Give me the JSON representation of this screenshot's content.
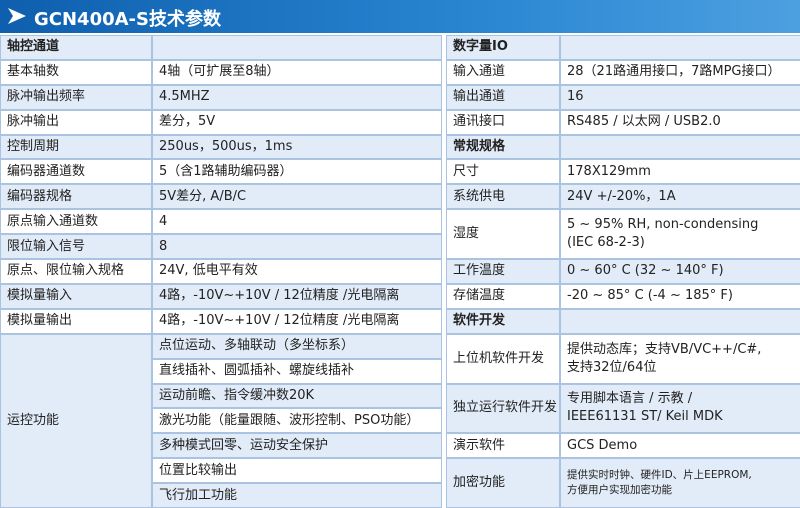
{
  "header": {
    "title": "GCN400A-S技术参数"
  },
  "left": {
    "rows": [
      {
        "heading": "轴控通道"
      },
      {
        "label": "基本轴数",
        "value": [
          "4轴（可扩展至8轴）"
        ]
      },
      {
        "label": "脉冲输出频率",
        "value": [
          "4.5MHZ"
        ]
      },
      {
        "label": "脉冲输出",
        "value": [
          "差分，5V"
        ]
      },
      {
        "label": "控制周期",
        "value": [
          "250us，500us，1ms"
        ]
      },
      {
        "label": "编码器通道数",
        "value": [
          "5（含1路辅助编码器）"
        ]
      },
      {
        "label": "编码器规格",
        "value": [
          "5V差分, A/B/C"
        ]
      },
      {
        "label": "原点输入通道数",
        "value": [
          "4"
        ]
      },
      {
        "label": "限位输入信号",
        "value": [
          "8"
        ]
      },
      {
        "label": "原点、限位输入规格",
        "value": [
          "24V, 低电平有效"
        ]
      },
      {
        "label": "模拟量输入",
        "value": [
          "4路，-10V~+10V / 12位精度 /光电隔离"
        ]
      },
      {
        "label": "模拟量输出",
        "value": [
          "4路，-10V~+10V / 12位精度 /光电隔离"
        ]
      },
      {
        "label": "运控功能",
        "split": true,
        "value": [
          "点位运动、多轴联动（多坐标系）",
          "直线插补、圆弧插补、螺旋线插补",
          "运动前瞻、指令缓冲数20K",
          "激光功能（能量跟随、波形控制、PSO功能）",
          "多种模式回零、运动安全保护",
          "位置比较输出",
          "飞行加工功能"
        ]
      }
    ]
  },
  "right": {
    "rows": [
      {
        "heading": "数字量IO"
      },
      {
        "label": "输入通道",
        "value": [
          "28（21路通用接口，7路MPG接口）"
        ]
      },
      {
        "label": "输出通道",
        "value": [
          "16"
        ]
      },
      {
        "label": "通讯接口",
        "value": [
          "RS485 / 以太网 / USB2.0"
        ]
      },
      {
        "heading": "常规规格"
      },
      {
        "label": "尺寸",
        "value": [
          "178X129mm"
        ]
      },
      {
        "label": "系统供电",
        "value": [
          "24V +/-20%，1A"
        ]
      },
      {
        "label": "湿度",
        "value": [
          "5 ~ 95% RH, non-condensing",
          "(IEC 68-2-3)"
        ]
      },
      {
        "label": "工作温度",
        "value": [
          "0 ~ 60° C (32 ~ 140° F)"
        ]
      },
      {
        "label": "存储温度",
        "value": [
          "-20 ~ 85° C (-4 ~ 185° F)"
        ]
      },
      {
        "heading": "软件开发"
      },
      {
        "label": "上位机软件开发",
        "value": [
          "提供动态库；支持VB/VC++/C#,",
          "支持32位/64位"
        ]
      },
      {
        "label": "独立运行软件开发",
        "value": [
          "专用脚本语言 / 示教 /",
          "IEEE61131 ST/ Keil MDK"
        ]
      },
      {
        "label": "演示软件",
        "value": [
          "GCS Demo"
        ]
      },
      {
        "label": "加密功能",
        "small": true,
        "value": [
          "提供实时时钟、硬件ID、片上EEPROM,",
          "方便用户实现加密功能"
        ]
      }
    ]
  }
}
